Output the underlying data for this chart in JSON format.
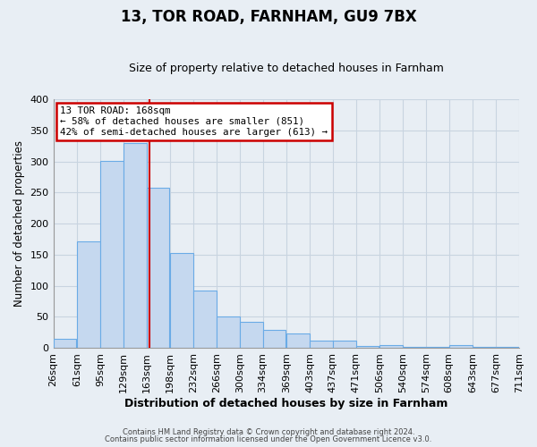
{
  "title": "13, TOR ROAD, FARNHAM, GU9 7BX",
  "subtitle": "Size of property relative to detached houses in Farnham",
  "xlabel": "Distribution of detached houses by size in Farnham",
  "ylabel": "Number of detached properties",
  "bar_left_edges": [
    26,
    61,
    95,
    129,
    163,
    198,
    232,
    266,
    300,
    334,
    369,
    403,
    437,
    471,
    506,
    540,
    574,
    608,
    643,
    677
  ],
  "bar_heights": [
    15,
    172,
    301,
    330,
    258,
    153,
    92,
    50,
    42,
    29,
    23,
    12,
    11,
    3,
    5,
    1,
    1,
    5,
    1,
    2
  ],
  "bin_width": 34,
  "tick_labels": [
    "26sqm",
    "61sqm",
    "95sqm",
    "129sqm",
    "163sqm",
    "198sqm",
    "232sqm",
    "266sqm",
    "300sqm",
    "334sqm",
    "369sqm",
    "403sqm",
    "437sqm",
    "471sqm",
    "506sqm",
    "540sqm",
    "574sqm",
    "608sqm",
    "643sqm",
    "677sqm",
    "711sqm"
  ],
  "bar_color": "#c5d8ef",
  "bar_edge_color": "#6aabe6",
  "property_line_x": 168,
  "property_line_color": "#cc0000",
  "annotation_title": "13 TOR ROAD: 168sqm",
  "annotation_line1": "← 58% of detached houses are smaller (851)",
  "annotation_line2": "42% of semi-detached houses are larger (613) →",
  "annotation_box_color": "#ffffff",
  "annotation_box_edge_color": "#cc0000",
  "ylim": [
    0,
    400
  ],
  "yticks": [
    0,
    50,
    100,
    150,
    200,
    250,
    300,
    350,
    400
  ],
  "grid_color": "#c8d4e0",
  "background_color": "#e8eef4",
  "plot_bg_color": "#e8eef4",
  "footer1": "Contains HM Land Registry data © Crown copyright and database right 2024.",
  "footer2": "Contains public sector information licensed under the Open Government Licence v3.0."
}
